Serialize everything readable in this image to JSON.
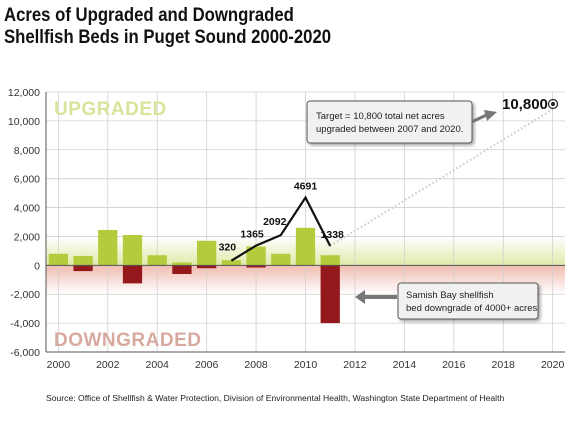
{
  "title_line1": "Acres of Upgraded and Downgraded",
  "title_line2": "Shellfish Beds in Puget Sound 2000-2020",
  "source": "Source: Office of Shellfish & Water Protection, Division of Environmental Health, Washington State Department of Health",
  "colors": {
    "upgraded": "#b3cb3c",
    "downgraded": "#93191c",
    "up_zone": "#dfeaa8",
    "down_zone": "#efbcb0",
    "up_text": "#d6e59a",
    "down_text": "#d8a99f",
    "line": "#111111",
    "target_line": "#c8c8c8"
  },
  "chart_data": {
    "type": "bar",
    "xlim": [
      1999.5,
      2020.5
    ],
    "ylim": [
      -6000,
      12000
    ],
    "xticks": [
      "2000",
      "2002",
      "2004",
      "2006",
      "2008",
      "2010",
      "2012",
      "2014",
      "2016",
      "2018",
      "2020"
    ],
    "yticks": [
      "-6,000",
      "-4,000",
      "-2,000",
      "0",
      "2,000",
      "4,000",
      "6,000",
      "8,000",
      "10,000",
      "12,000"
    ],
    "ytick_values": [
      -6000,
      -4000,
      -2000,
      0,
      2000,
      4000,
      6000,
      8000,
      10000,
      12000
    ],
    "zone_labels": {
      "upgraded": "UPGRADED",
      "downgraded": "DOWNGRADED"
    },
    "series": [
      {
        "name": "Upgraded",
        "x": [
          2000,
          2001,
          2002,
          2003,
          2004,
          2005,
          2006,
          2007,
          2008,
          2009,
          2010,
          2011
        ],
        "values": [
          800,
          650,
          2450,
          2100,
          700,
          200,
          1700,
          350,
          1300,
          800,
          2600,
          700
        ]
      },
      {
        "name": "Downgraded",
        "x": [
          2000,
          2001,
          2002,
          2003,
          2004,
          2005,
          2006,
          2007,
          2008,
          2009,
          2010,
          2011
        ],
        "values": [
          0,
          -400,
          0,
          -1250,
          0,
          -600,
          -200,
          0,
          -150,
          0,
          0,
          -4000
        ]
      }
    ],
    "net_line": {
      "x": [
        2007,
        2008,
        2009,
        2010,
        2011
      ],
      "values": [
        320,
        1365,
        2092,
        4691,
        1338
      ],
      "labels": [
        "320",
        "1365",
        "2092",
        "4691",
        "1338"
      ]
    },
    "target": {
      "x": [
        2011,
        2020
      ],
      "values": [
        1338,
        10800
      ],
      "label": "10,800"
    },
    "annotations": [
      {
        "lines": [
          "Target = 10,800 total net acres",
          "upgraded between 2007 and 2020."
        ]
      },
      {
        "lines": [
          "Samish Bay shellfish",
          "bed downgrade of 4000+ acres"
        ]
      }
    ]
  }
}
